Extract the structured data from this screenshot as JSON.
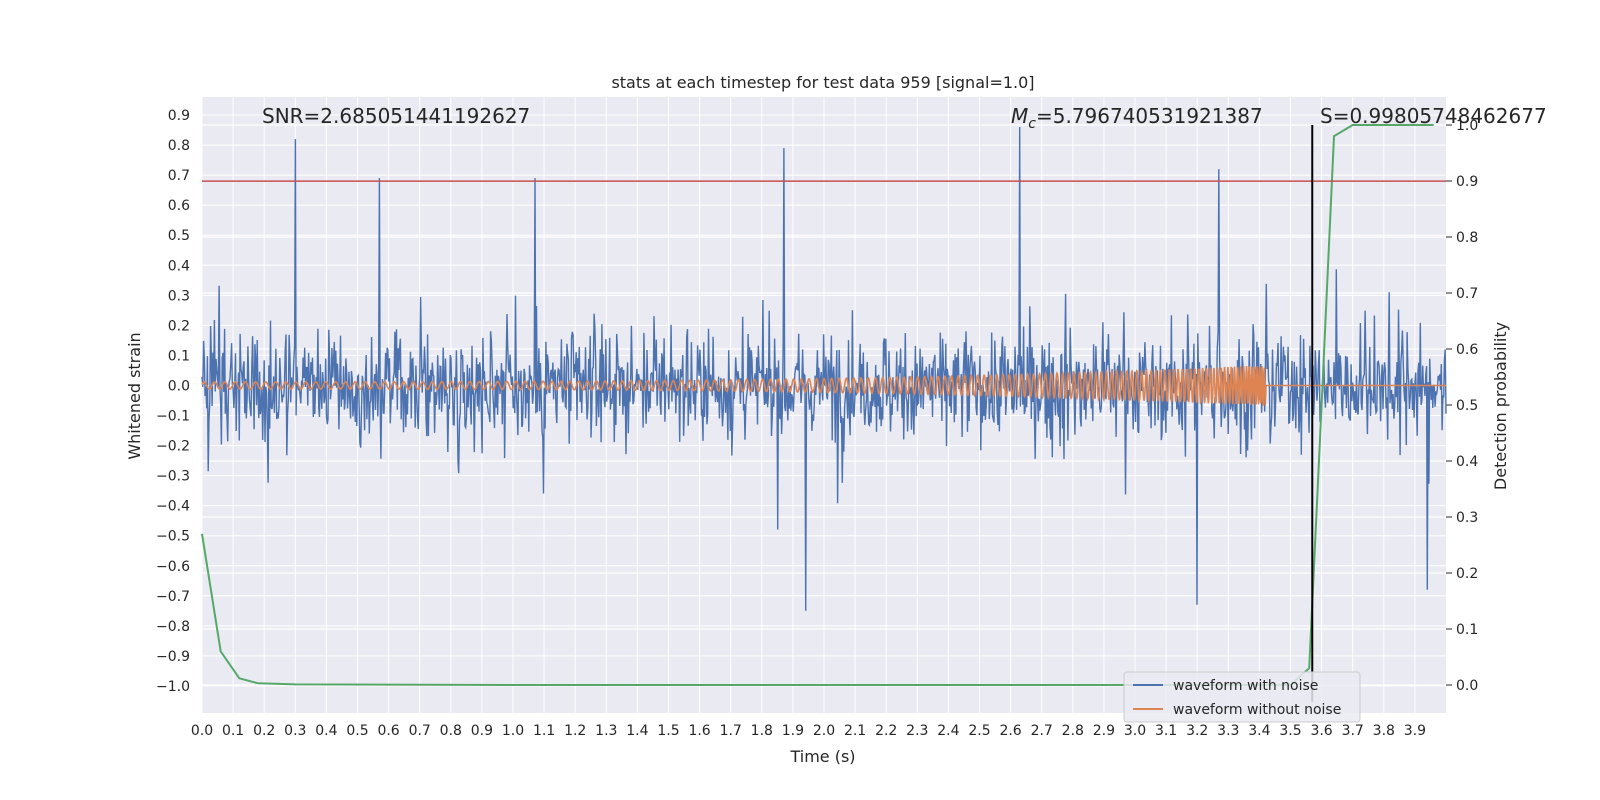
{
  "chart_data": {
    "type": "line",
    "title": "stats at each timestep for test data 959 [signal=1.0]",
    "xlabel": "Time (s)",
    "ylabel": "Whitened strain",
    "y2label": "Detection probability",
    "xlim": [
      0.0,
      4.0
    ],
    "ylim": [
      -1.09,
      0.96
    ],
    "y2lim": [
      -0.05,
      1.05
    ],
    "xticks": [
      "0.0",
      "0.1",
      "0.2",
      "0.3",
      "0.4",
      "0.5",
      "0.6",
      "0.7",
      "0.8",
      "0.9",
      "1.0",
      "1.1",
      "1.2",
      "1.3",
      "1.4",
      "1.5",
      "1.6",
      "1.7",
      "1.8",
      "1.9",
      "2.0",
      "2.1",
      "2.2",
      "2.3",
      "2.4",
      "2.5",
      "2.6",
      "2.7",
      "2.8",
      "2.9",
      "3.0",
      "3.1",
      "3.2",
      "3.3",
      "3.4",
      "3.5",
      "3.6",
      "3.7",
      "3.8",
      "3.9"
    ],
    "yticks": [
      "0.9",
      "0.8",
      "0.7",
      "0.6",
      "0.5",
      "0.4",
      "0.3",
      "0.2",
      "0.1",
      "0.0",
      "−0.1",
      "−0.2",
      "−0.3",
      "−0.4",
      "−0.5",
      "−0.6",
      "−0.7",
      "−0.8",
      "−0.9",
      "−1.0"
    ],
    "y2ticks": [
      "1.0",
      "0.9",
      "0.8",
      "0.7",
      "0.6",
      "0.5",
      "0.4",
      "0.3",
      "0.2",
      "0.1",
      "0.0"
    ],
    "grid": true,
    "legend_position": "lower-right",
    "series": [
      {
        "name": "waveform with noise",
        "color": "#4c72b0",
        "description_of_values": "noisy whitened strain, dense high-frequency trace",
        "envelope_typical": [
          -0.35,
          0.3
        ],
        "peaks": [
          {
            "x": 0.3,
            "y": 0.82
          },
          {
            "x": 0.57,
            "y": 0.69
          },
          {
            "x": 1.07,
            "y": 0.69
          },
          {
            "x": 1.87,
            "y": 0.79
          },
          {
            "x": 2.63,
            "y": 0.86
          },
          {
            "x": 3.2,
            "y": 0.72
          },
          {
            "x": 3.27,
            "y": 0.72
          },
          {
            "x": 1.94,
            "y": -0.75
          },
          {
            "x": 3.2,
            "y": -0.73
          },
          {
            "x": 3.94,
            "y": -0.68
          }
        ]
      },
      {
        "name": "waveform without noise",
        "color": "#dd8452",
        "description_of_values": "chirp signal growing in amplitude until merger near 3.42 s, then flat at 0",
        "chirp_end_x": 3.42,
        "amplitude_start": 0.012,
        "amplitude_end": 0.07
      },
      {
        "name": "",
        "axis": "right",
        "color": "#55a868",
        "points": [
          [
            0.0,
            0.27
          ],
          [
            0.06,
            0.06
          ],
          [
            0.12,
            0.012
          ],
          [
            0.18,
            0.003
          ],
          [
            0.3,
            0.001
          ],
          [
            1.0,
            0.0
          ],
          [
            3.2,
            0.0
          ],
          [
            3.5,
            0.0
          ],
          [
            3.56,
            0.03
          ],
          [
            3.6,
            0.5
          ],
          [
            3.64,
            0.98
          ],
          [
            3.7,
            1.0
          ],
          [
            3.96,
            1.0
          ]
        ]
      }
    ],
    "hlines": [
      {
        "y": 0.68,
        "axis": "left",
        "color": "#c44e52"
      }
    ],
    "vlines": [
      {
        "x": 3.57,
        "color": "#000000",
        "y2_from": -0.03,
        "y2_to": 1.0
      }
    ],
    "annotations": [
      {
        "text": "SNR=2.685051441192627",
        "x": 0.2
      },
      {
        "text_prefix": "M",
        "text_sub": "c",
        "text": "=5.796740531921387",
        "x": 2.6
      },
      {
        "text": "S=0.9980574846267 7",
        "x": 3.61
      }
    ],
    "annotation_texts": {
      "snr": "SNR=2.685051441192627",
      "mc_prefix": "M",
      "mc_sub": "c",
      "mc": "=5.796740531921387",
      "s": "S=0.99805748462677"
    }
  }
}
